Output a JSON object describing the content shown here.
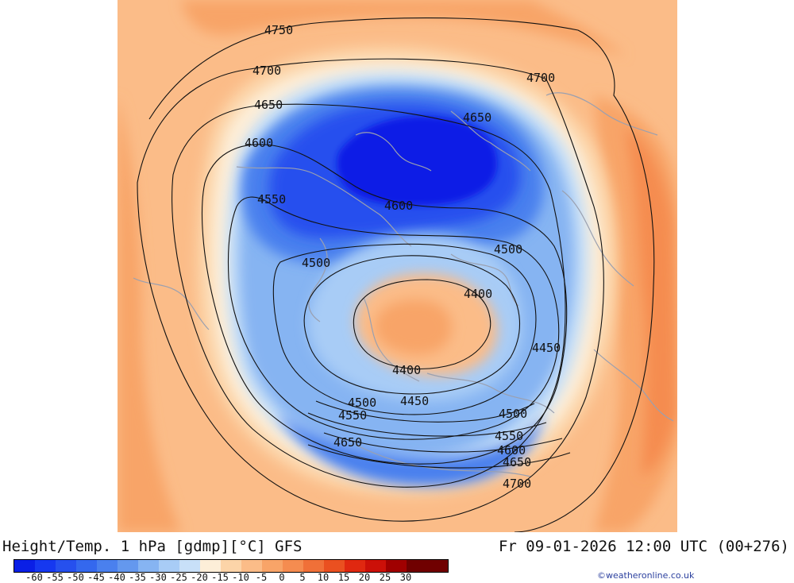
{
  "title": "Height/Temp. 1 hPa [gdmp][°C] GFS",
  "valid_time": "Fr 09-01-2026 12:00 UTC (00+276)",
  "credit": "©weatheronline.co.uk",
  "colors": {
    "c_m60": "#0a1fe6",
    "c_m55": "#1638f0",
    "c_m50": "#2650ee",
    "c_m45": "#3468ee",
    "c_m40": "#4a80ee",
    "c_m35": "#6498ee",
    "c_m30": "#86b4f2",
    "c_m25": "#a8ccf6",
    "c_m20": "#c8e0f8",
    "c_m15": "#fdeed8",
    "c_m10": "#fcd4a8",
    "c_m5": "#fbbc88",
    "c_0": "#f8a468",
    "c_5": "#f58c50",
    "c_10": "#f07038",
    "c_15": "#ea5020",
    "c_20": "#e02810",
    "c_25": "#cc1008",
    "c_30": "#a00000",
    "c_35": "#700000",
    "land_outline": "#9aa0b0",
    "contour": "#111111"
  },
  "legend": {
    "unit": "°C",
    "tick_labels": [
      "-60",
      "-55",
      "-50",
      "-45",
      "-40",
      "-35",
      "-30",
      "-25",
      "-20",
      "-15",
      "-10",
      "-5",
      "0",
      "5",
      "10",
      "15",
      "20",
      "25",
      "30"
    ]
  },
  "contours": [
    {
      "value": 4750,
      "label": "4750"
    },
    {
      "value": 4700,
      "label": "4700"
    },
    {
      "value": 4650,
      "label": "4650"
    },
    {
      "value": 4600,
      "label": "4600"
    },
    {
      "value": 4550,
      "label": "4550"
    },
    {
      "value": 4500,
      "label": "4500"
    },
    {
      "value": 4450,
      "label": "4450"
    },
    {
      "value": 4400,
      "label": "4400"
    }
  ],
  "contour_labels": [
    "4750",
    "4700",
    "4700",
    "4650",
    "4650",
    "4600",
    "4600",
    "4550",
    "4500",
    "4500",
    "4400",
    "4450",
    "4400",
    "4500",
    "4450",
    "4550",
    "4500",
    "4650",
    "4550",
    "4600",
    "4650",
    "4700"
  ]
}
